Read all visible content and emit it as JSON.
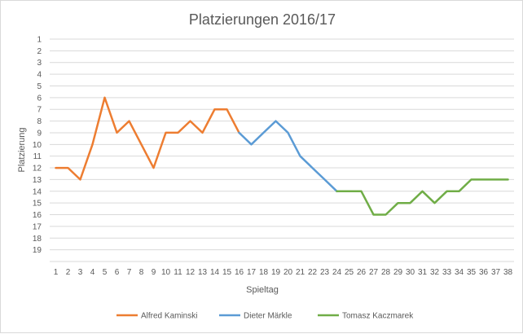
{
  "chart_data": {
    "type": "line",
    "title": "Platzierungen 2016/17",
    "xlabel": "Spieltag",
    "ylabel": "Platzierung",
    "x": [
      1,
      2,
      3,
      4,
      5,
      6,
      7,
      8,
      9,
      10,
      11,
      12,
      13,
      14,
      15,
      16,
      17,
      18,
      19,
      20,
      21,
      22,
      23,
      24,
      25,
      26,
      27,
      28,
      29,
      30,
      31,
      32,
      33,
      34,
      35,
      36,
      37,
      38
    ],
    "y_ticks": [
      1,
      2,
      3,
      4,
      5,
      6,
      7,
      8,
      9,
      10,
      11,
      12,
      13,
      14,
      15,
      16,
      17,
      18,
      19
    ],
    "ylim": [
      1,
      19
    ],
    "y_inverted": true,
    "grid": "horizontal",
    "legend_position": "bottom",
    "series": [
      {
        "name": "Alfred Kaminski",
        "color": "#ED7D31",
        "x": [
          1,
          2,
          3,
          4,
          5,
          6,
          7,
          8,
          9,
          10,
          11,
          12,
          13,
          14,
          15,
          16
        ],
        "values": [
          12,
          12,
          13,
          10,
          6,
          9,
          8,
          10,
          12,
          9,
          9,
          8,
          9,
          7,
          7,
          9
        ]
      },
      {
        "name": "Dieter Märkle",
        "color": "#5B9BD5",
        "x": [
          16,
          17,
          18,
          19,
          20,
          21,
          22,
          23,
          24
        ],
        "values": [
          9,
          10,
          9,
          8,
          9,
          11,
          12,
          13,
          14
        ]
      },
      {
        "name": "Tomasz Kaczmarek",
        "color": "#70AD47",
        "x": [
          24,
          25,
          26,
          27,
          28,
          29,
          30,
          31,
          32,
          33,
          34,
          35,
          36,
          37,
          38
        ],
        "values": [
          14,
          14,
          14,
          16,
          16,
          15,
          15,
          14,
          15,
          14,
          14,
          13,
          13,
          13,
          13
        ]
      }
    ]
  }
}
